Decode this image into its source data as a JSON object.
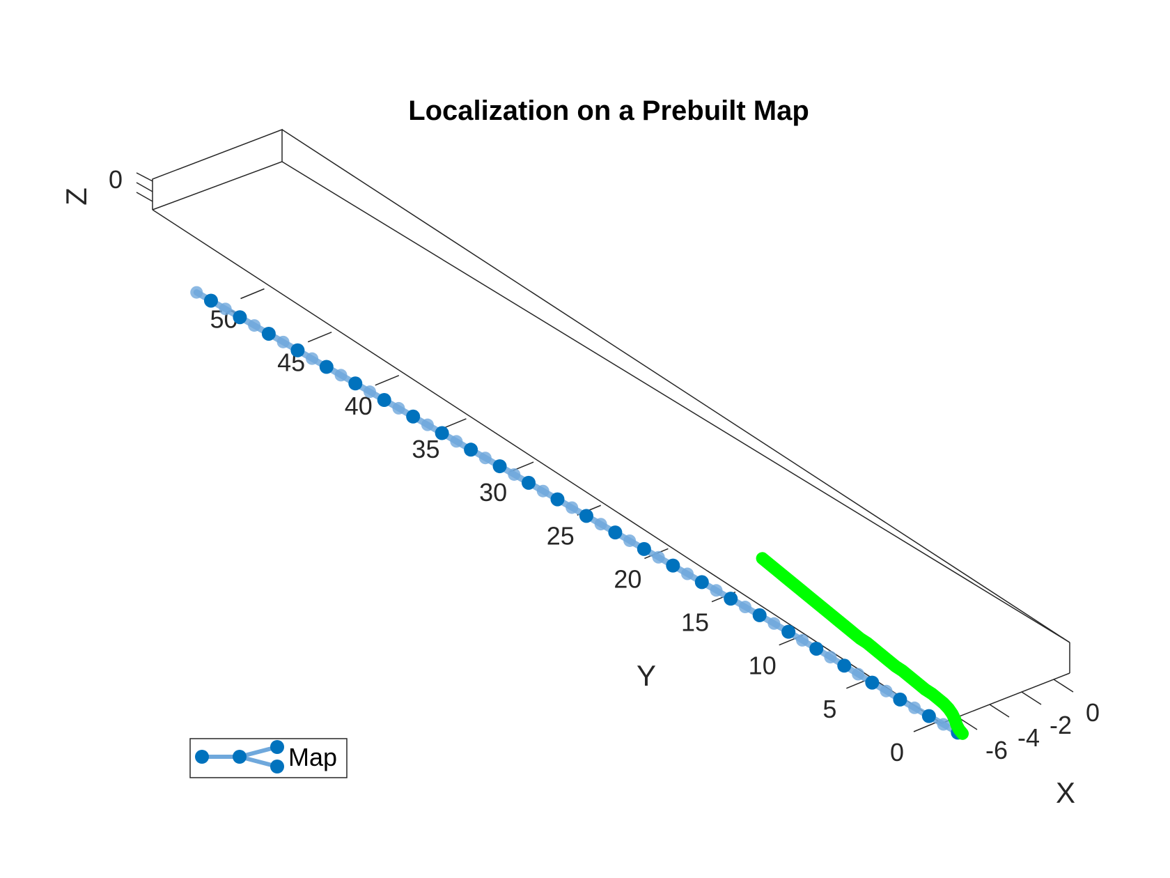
{
  "chart_data": {
    "type": "3d-line",
    "title": "Localization on a Prebuilt Map",
    "xlabel": "X",
    "ylabel": "Y",
    "zlabel": "Z",
    "xlim": [
      -7,
      1
    ],
    "ylim": [
      -4,
      56
    ],
    "zlim": [
      -0.5,
      0.5
    ],
    "x_ticks": [
      "-6",
      "-4",
      "-2",
      "0"
    ],
    "y_ticks": [
      "0",
      "5",
      "10",
      "15",
      "20",
      "25",
      "30",
      "35",
      "40",
      "45",
      "50"
    ],
    "z_ticks": [
      "0"
    ],
    "grid": false,
    "legend": {
      "position": "bottom-left",
      "entries": [
        "Map"
      ]
    },
    "colors": {
      "map": "#0072BD",
      "map_edge": "#6FA8DC",
      "localization": "#00FF00",
      "axes": "#262626"
    },
    "series": [
      {
        "name": "Map",
        "kind": "keyframes",
        "points": [
          [
            0.0,
            -1.0
          ],
          [
            -0.05,
            0.0
          ],
          [
            -0.1,
            1.0
          ],
          [
            -0.15,
            2.0
          ],
          [
            -0.2,
            3.0
          ],
          [
            -0.22,
            4.0
          ],
          [
            -0.25,
            5.0
          ],
          [
            -0.28,
            6.0
          ],
          [
            -0.3,
            7.0
          ],
          [
            -0.32,
            8.0
          ],
          [
            -0.35,
            9.0
          ],
          [
            -0.38,
            10.0
          ],
          [
            -0.4,
            11.0
          ],
          [
            -0.45,
            12.0
          ],
          [
            -0.5,
            13.0
          ],
          [
            -0.55,
            14.0
          ],
          [
            -0.6,
            15.0
          ],
          [
            -0.65,
            16.0
          ],
          [
            -0.7,
            17.0
          ],
          [
            -0.75,
            18.0
          ],
          [
            -0.8,
            19.0
          ],
          [
            -0.85,
            20.0
          ],
          [
            -0.9,
            21.0
          ],
          [
            -0.95,
            22.0
          ],
          [
            -1.0,
            23.0
          ],
          [
            -1.05,
            24.0
          ],
          [
            -1.1,
            25.0
          ],
          [
            -1.15,
            26.0
          ],
          [
            -1.2,
            27.0
          ],
          [
            -1.25,
            28.0
          ],
          [
            -1.3,
            29.0
          ],
          [
            -1.35,
            30.0
          ],
          [
            -1.4,
            31.0
          ],
          [
            -1.45,
            32.0
          ],
          [
            -1.5,
            33.0
          ],
          [
            -1.55,
            34.0
          ],
          [
            -1.6,
            35.0
          ],
          [
            -1.65,
            36.0
          ],
          [
            -1.7,
            37.0
          ],
          [
            -1.75,
            38.0
          ],
          [
            -1.8,
            39.0
          ],
          [
            -1.85,
            40.0
          ],
          [
            -1.9,
            41.0
          ],
          [
            -1.95,
            42.0
          ],
          [
            -2.0,
            43.0
          ],
          [
            -2.05,
            44.0
          ],
          [
            -2.1,
            45.0
          ],
          [
            -2.15,
            46.0
          ],
          [
            -2.2,
            47.0
          ],
          [
            -2.25,
            48.0
          ],
          [
            -2.3,
            49.0
          ],
          [
            -2.35,
            50.0
          ],
          [
            -2.4,
            51.0
          ],
          [
            -2.45,
            52.0
          ]
        ]
      },
      {
        "kind": "localization",
        "points": [
          [
            0.1,
            -1.2
          ],
          [
            0.2,
            -0.8
          ],
          [
            0.35,
            -0.4
          ],
          [
            0.55,
            0.0
          ],
          [
            0.75,
            0.5
          ],
          [
            0.9,
            1.0
          ],
          [
            1.0,
            1.5
          ],
          [
            1.05,
            2.0
          ],
          [
            1.1,
            2.5
          ],
          [
            1.1,
            3.0
          ],
          [
            1.15,
            3.5
          ],
          [
            1.2,
            4.0
          ],
          [
            1.25,
            4.5
          ],
          [
            1.3,
            5.0
          ],
          [
            1.3,
            5.5
          ],
          [
            1.35,
            6.0
          ],
          [
            1.4,
            6.5
          ],
          [
            1.45,
            7.0
          ],
          [
            1.5,
            7.5
          ],
          [
            1.55,
            8.0
          ],
          [
            1.55,
            8.5
          ],
          [
            1.6,
            9.0
          ],
          [
            1.65,
            9.5
          ],
          [
            1.7,
            10.0
          ],
          [
            1.75,
            10.5
          ],
          [
            1.8,
            11.0
          ],
          [
            1.85,
            11.5
          ],
          [
            1.9,
            12.0
          ],
          [
            1.95,
            12.5
          ],
          [
            2.0,
            13.0
          ],
          [
            2.05,
            13.5
          ],
          [
            2.1,
            14.0
          ],
          [
            2.15,
            14.5
          ],
          [
            2.2,
            15.0
          ],
          [
            2.25,
            15.5
          ],
          [
            2.3,
            16.0
          ],
          [
            2.35,
            16.5
          ],
          [
            2.4,
            17.0
          ]
        ]
      }
    ]
  }
}
